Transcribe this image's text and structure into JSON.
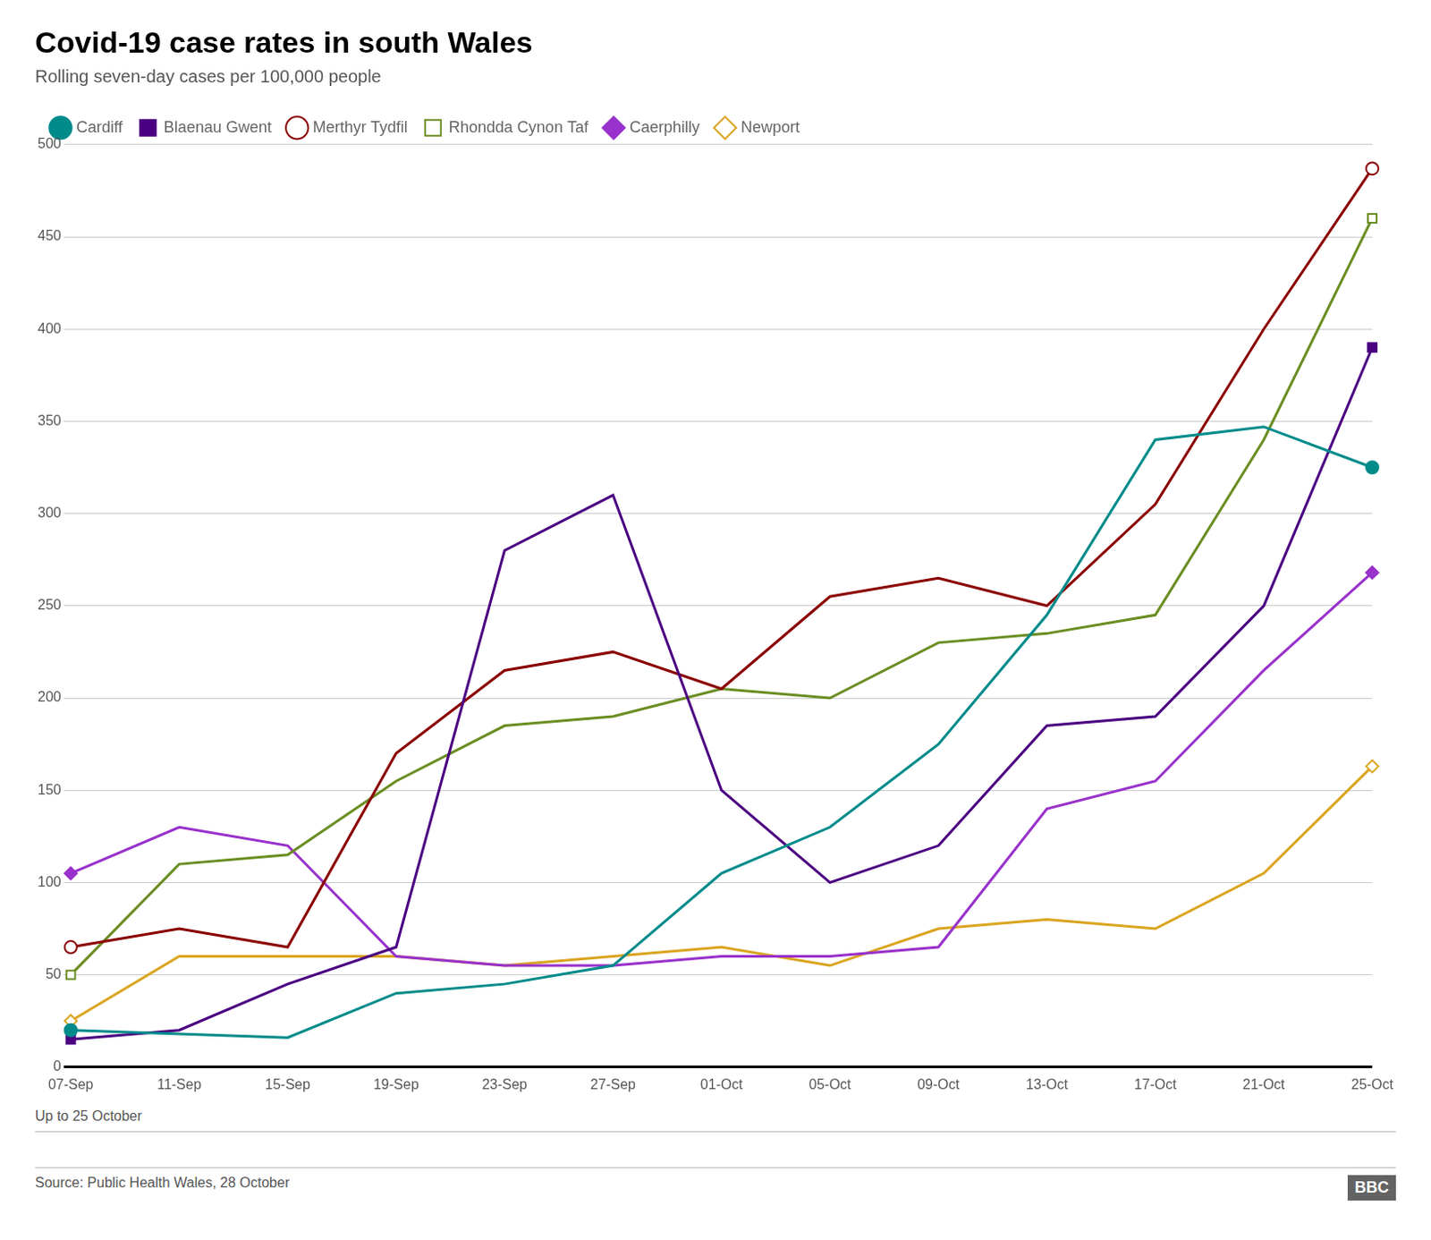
{
  "chart_data": {
    "type": "line",
    "title": "Covid-19 case rates in south Wales",
    "subtitle": "Rolling seven-day cases per 100,000 people",
    "footnote": "Up to 25 October",
    "source": "Source: Public Health Wales, 28 October",
    "annotations": [
      "BBC"
    ],
    "categories": [
      "07-Sep",
      "11-Sep",
      "15-Sep",
      "19-Sep",
      "23-Sep",
      "27-Sep",
      "01-Oct",
      "05-Oct",
      "09-Oct",
      "13-Oct",
      "17-Oct",
      "21-Oct",
      "25-Oct"
    ],
    "series": [
      {
        "name": "Cardiff",
        "color": "#008B8B",
        "marker": "circle",
        "values": [
          20,
          18,
          16,
          40,
          45,
          55,
          105,
          130,
          175,
          245,
          340,
          347,
          325
        ]
      },
      {
        "name": "Blaenau Gwent",
        "color": "#4B0082",
        "marker": "square",
        "values": [
          15,
          20,
          45,
          65,
          280,
          310,
          150,
          100,
          120,
          185,
          190,
          250,
          390
        ]
      },
      {
        "name": "Merthyr Tydfil",
        "color": "#8B0000",
        "marker": "open_circle",
        "values": [
          65,
          75,
          65,
          170,
          215,
          225,
          205,
          255,
          265,
          250,
          305,
          400,
          487
        ]
      },
      {
        "name": "Rhondda Cynon Taf",
        "color": "#6B8E23",
        "marker": "open_square",
        "values": [
          50,
          110,
          115,
          155,
          185,
          190,
          205,
          200,
          230,
          235,
          245,
          340,
          460
        ]
      },
      {
        "name": "Caerphilly",
        "color": "#9932CC",
        "marker": "diamond",
        "values": [
          105,
          130,
          120,
          60,
          55,
          55,
          60,
          60,
          65,
          140,
          155,
          215,
          268
        ]
      },
      {
        "name": "Newport",
        "color": "#DAA520",
        "marker": "open_diamond",
        "values": [
          25,
          60,
          60,
          60,
          55,
          60,
          65,
          55,
          75,
          80,
          75,
          105,
          163
        ]
      }
    ],
    "ylim": [
      0,
      500
    ],
    "yticks": [
      0,
      50,
      100,
      150,
      200,
      250,
      300,
      350,
      400,
      450,
      500
    ],
    "grid": true,
    "legend": "top"
  }
}
